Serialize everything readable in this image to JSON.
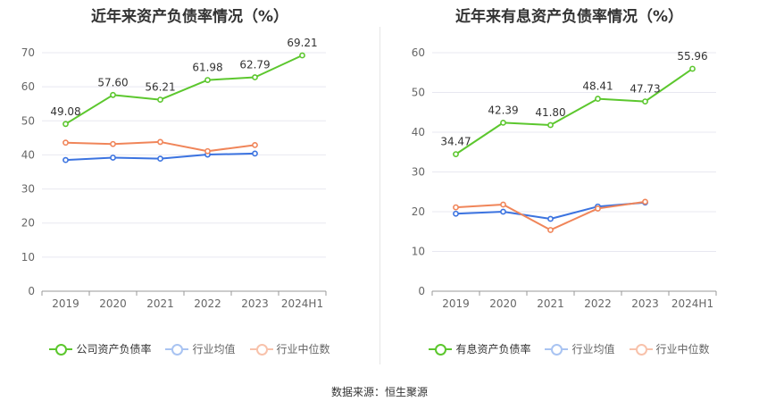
{
  "charts": [
    {
      "title": "近年来资产负债率情况（%）",
      "chart_data": {
        "type": "line",
        "title": "近年来资产负债率情况（%）",
        "categories": [
          "2019",
          "2020",
          "2021",
          "2022",
          "2023",
          "2024H1"
        ],
        "ylim": [
          0,
          70
        ],
        "yticks": [
          0,
          10,
          20,
          30,
          40,
          50,
          60,
          70
        ],
        "series": [
          {
            "name": "公司资产负债率",
            "color": "#5cc72e",
            "values": [
              49.08,
              57.6,
              56.21,
              61.98,
              62.79,
              69.21
            ],
            "labels": [
              "49.08",
              "57.60",
              "56.21",
              "61.98",
              "62.79",
              "69.21"
            ]
          },
          {
            "name": "行业均值",
            "color": "#3b73e0",
            "values": [
              38.5,
              39.2,
              38.9,
              40.1,
              40.4,
              null
            ]
          },
          {
            "name": "行业中位数",
            "color": "#f08559",
            "values": [
              43.6,
              43.2,
              43.8,
              41.1,
              42.9,
              null
            ]
          }
        ]
      }
    },
    {
      "title": "近年来有息资产负债率情况（%）",
      "chart_data": {
        "type": "line",
        "title": "近年来有息资产负债率情况（%）",
        "categories": [
          "2019",
          "2020",
          "2021",
          "2022",
          "2023",
          "2024H1"
        ],
        "ylim": [
          0,
          60
        ],
        "yticks": [
          0,
          10,
          20,
          30,
          40,
          50,
          60
        ],
        "series": [
          {
            "name": "有息资产负债率",
            "color": "#5cc72e",
            "values": [
              34.47,
              42.39,
              41.8,
              48.41,
              47.73,
              55.96
            ],
            "labels": [
              "34.47",
              "42.39",
              "41.80",
              "48.41",
              "47.73",
              "55.96"
            ]
          },
          {
            "name": "行业均值",
            "color": "#3b73e0",
            "values": [
              19.5,
              20.0,
              18.2,
              21.3,
              22.3,
              null
            ]
          },
          {
            "name": "行业中位数",
            "color": "#f08559",
            "values": [
              21.1,
              21.8,
              15.4,
              20.8,
              22.5,
              null
            ]
          }
        ]
      }
    }
  ],
  "legend_faded_colors": [
    "#a9c4f2",
    "#f8c2ab"
  ],
  "source": "数据来源：恒生聚源"
}
